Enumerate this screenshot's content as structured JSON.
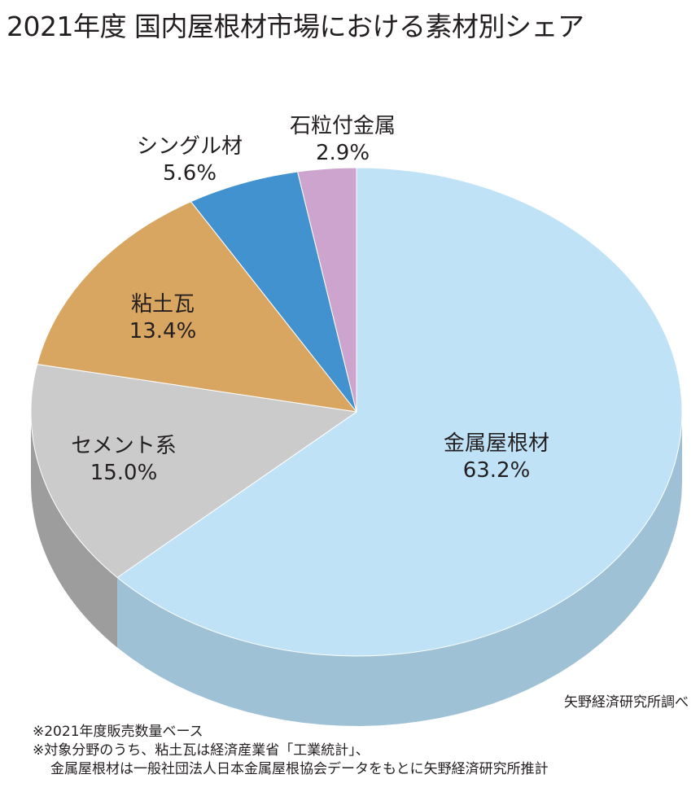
{
  "chart_data": {
    "type": "pie",
    "title": "2021年度 国内屋根材市場における素材別シェア",
    "unit": "%",
    "slices": [
      {
        "name": "金属屋根材",
        "value": 63.2,
        "label": "63.2%",
        "color": "#bfe2f7",
        "side_color": "#9fc1d5"
      },
      {
        "name": "セメント系",
        "value": 15.0,
        "label": "15.0%",
        "color": "#cbcbcb",
        "side_color": "#9d9d9d"
      },
      {
        "name": "粘土瓦",
        "value": 13.4,
        "label": "13.4%",
        "color": "#d9a661",
        "side_color": "#b0864d"
      },
      {
        "name": "シングル材",
        "value": 5.6,
        "label": "5.6%",
        "color": "#4292d0",
        "side_color": "#336fa0"
      },
      {
        "name": "石粒付金属",
        "value": 2.9,
        "label": "2.9%",
        "color": "#cda4ce",
        "side_color": "#a582a6"
      }
    ],
    "legend": "none",
    "style": "3d-pie"
  },
  "source": "矢野経済研究所調べ",
  "notes": [
    "※2021年度販売数量ベース",
    "※対象分野のうち、粘土瓦は経済産業省「工業統計」、",
    "金属屋根材は一般社団法人日本金属屋根協会データをもとに矢野経済研究所推計"
  ]
}
